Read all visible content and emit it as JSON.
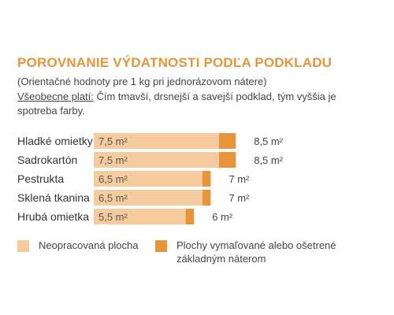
{
  "title": "POROVNANIE VÝDATNOSTI PODĽA PODKLADU",
  "subtitle": "(Orientačné hodnoty pre 1 kg pri jednorázovom nátere)",
  "note_lead": "Všeobecne platí:",
  "note_text": " Čím tmavší, drsnejší a savejší podklad, tým vyššia je spotreba farby.",
  "colors": {
    "accent": "#e8943a",
    "light_bar": "#f6cb9e",
    "dark_bar": "#e8943a"
  },
  "chart_data": {
    "type": "bar",
    "orientation": "horizontal",
    "stacked": true,
    "unit": "m²",
    "categories": [
      "Hladké omietky",
      "Sadrokartón",
      "Pestrukta",
      "Sklená tkanina",
      "Hrubá omietka"
    ],
    "series": [
      {
        "name": "Neopracovaná plocha",
        "values": [
          7.5,
          7.5,
          6.5,
          6.5,
          5.5
        ],
        "labels": [
          "7,5",
          "7,5",
          "6,5",
          "6,5",
          "5,5"
        ]
      },
      {
        "name": "Plochy vymaľované alebo ošetrené základným náterom",
        "values": [
          8.5,
          8.5,
          7,
          7,
          6
        ],
        "labels": [
          "8,5",
          "8,5",
          "7",
          "7",
          "6"
        ]
      }
    ]
  }
}
